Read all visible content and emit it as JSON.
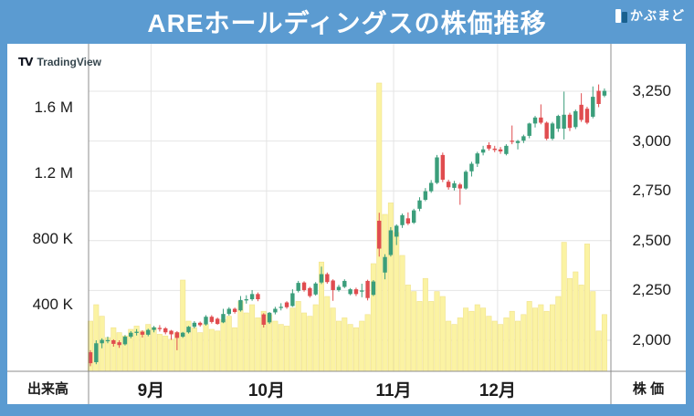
{
  "header": {
    "title": "AREホールディングスの株価推移",
    "brand": "かぶまど"
  },
  "watermark": {
    "label": "TradingView"
  },
  "chart_data": {
    "type": "candlestick",
    "title": "AREホールディングスの株価推移",
    "grid": true,
    "x_axis": {
      "tick_labels": [
        "9月",
        "10月",
        "11月",
        "12月"
      ],
      "month_start_indices": [
        11,
        31,
        53,
        71
      ]
    },
    "price_axis": {
      "label": "株 価",
      "side": "right",
      "tick_labels": [
        "3,250",
        "3,000",
        "2,750",
        "2,500",
        "2,250",
        "2,000"
      ],
      "ticks": [
        3250,
        3000,
        2750,
        2500,
        2250,
        2000
      ],
      "range_shown": [
        1850,
        3320
      ]
    },
    "volume_axis": {
      "label": "出来高",
      "side": "left",
      "tick_labels": [
        "1.6 M",
        "1.2 M",
        "800 K",
        "400 K"
      ],
      "ticks": [
        1600000,
        1200000,
        800000,
        400000
      ]
    },
    "colors": {
      "up": "#3B9E7B",
      "down": "#E04C4F",
      "volume_fill": "#FBF3A3",
      "volume_edge": "#F0E28E",
      "frame_blue": "#5B9BD1",
      "grid": "#E4E4E4",
      "axis_line": "#8C8C8C"
    },
    "candles": {
      "format": [
        "open",
        "high",
        "low",
        "close",
        "volume"
      ],
      "volume_unit": 1000,
      "data": [
        [
          1940,
          1950,
          1870,
          1885,
          300
        ],
        [
          1890,
          2000,
          1880,
          1985,
          400
        ],
        [
          1985,
          2010,
          1960,
          2002,
          330
        ],
        [
          2000,
          2018,
          1985,
          2001,
          200
        ],
        [
          2000,
          2005,
          1968,
          1982,
          260
        ],
        [
          1990,
          2000,
          1962,
          1976,
          230
        ],
        [
          1980,
          2026,
          1974,
          2018,
          210
        ],
        [
          2018,
          2046,
          2010,
          2038,
          250
        ],
        [
          2040,
          2056,
          2024,
          2043,
          270
        ],
        [
          2043,
          2050,
          2014,
          2028,
          240
        ],
        [
          2028,
          2058,
          2020,
          2052,
          280
        ],
        [
          2052,
          2072,
          2040,
          2065,
          260
        ],
        [
          2062,
          2076,
          2044,
          2058,
          220
        ],
        [
          2060,
          2066,
          2030,
          2040,
          210
        ],
        [
          2048,
          2052,
          2002,
          2030,
          190
        ],
        [
          2040,
          2046,
          1950,
          2012,
          230
        ],
        [
          2018,
          2042,
          2012,
          2038,
          550
        ],
        [
          2040,
          2072,
          2034,
          2068,
          300
        ],
        [
          2068,
          2096,
          2060,
          2088,
          260
        ],
        [
          2088,
          2094,
          2068,
          2076,
          230
        ],
        [
          2080,
          2126,
          2074,
          2118,
          280
        ],
        [
          2118,
          2126,
          2084,
          2092,
          250
        ],
        [
          2108,
          2114,
          2078,
          2082,
          240
        ],
        [
          2090,
          2158,
          2086,
          2132,
          310
        ],
        [
          2132,
          2166,
          2124,
          2158,
          330
        ],
        [
          2158,
          2164,
          2134,
          2142,
          260
        ],
        [
          2150,
          2222,
          2144,
          2202,
          420
        ],
        [
          2202,
          2226,
          2184,
          2206,
          350
        ],
        [
          2206,
          2252,
          2198,
          2232,
          400
        ],
        [
          2232,
          2240,
          2196,
          2206,
          320
        ],
        [
          2130,
          2136,
          2064,
          2078,
          360
        ],
        [
          2090,
          2142,
          2082,
          2138,
          340
        ],
        [
          2140,
          2168,
          2130,
          2158,
          300
        ],
        [
          2165,
          2186,
          2150,
          2168,
          280
        ],
        [
          2190,
          2196,
          2158,
          2166,
          270
        ],
        [
          2172,
          2256,
          2168,
          2236,
          380
        ],
        [
          2248,
          2298,
          2240,
          2288,
          420
        ],
        [
          2290,
          2296,
          2244,
          2252,
          350
        ],
        [
          2262,
          2268,
          2214,
          2222,
          330
        ],
        [
          2230,
          2292,
          2224,
          2285,
          400
        ],
        [
          2290,
          2370,
          2282,
          2332,
          660
        ],
        [
          2332,
          2340,
          2284,
          2292,
          450
        ],
        [
          2300,
          2306,
          2198,
          2252,
          380
        ],
        [
          2252,
          2278,
          2244,
          2268,
          300
        ],
        [
          2268,
          2306,
          2262,
          2298,
          320
        ],
        [
          2232,
          2262,
          2226,
          2256,
          280
        ],
        [
          2256,
          2264,
          2222,
          2232,
          260
        ],
        [
          2245,
          2284,
          2216,
          2250,
          300
        ],
        [
          2298,
          2304,
          2200,
          2212,
          340
        ],
        [
          2228,
          2302,
          2222,
          2295,
          650
        ],
        [
          2600,
          2640,
          2420,
          2460,
          1750
        ],
        [
          2340,
          2432,
          2306,
          2418,
          950
        ],
        [
          2428,
          2568,
          2420,
          2552,
          1020
        ],
        [
          2520,
          2582,
          2478,
          2575,
          840
        ],
        [
          2578,
          2636,
          2564,
          2628,
          700
        ],
        [
          2612,
          2642,
          2578,
          2586,
          520
        ],
        [
          2590,
          2660,
          2584,
          2652,
          480
        ],
        [
          2660,
          2718,
          2648,
          2702,
          420
        ],
        [
          2705,
          2764,
          2698,
          2748,
          560
        ],
        [
          2748,
          2804,
          2740,
          2790,
          420
        ],
        [
          2790,
          2930,
          2784,
          2918,
          480
        ],
        [
          2930,
          2942,
          2794,
          2806,
          450
        ],
        [
          2796,
          2806,
          2756,
          2768,
          300
        ],
        [
          2765,
          2800,
          2752,
          2788,
          280
        ],
        [
          2782,
          2790,
          2680,
          2762,
          320
        ],
        [
          2762,
          2854,
          2756,
          2846,
          380
        ],
        [
          2848,
          2896,
          2822,
          2886,
          360
        ],
        [
          2886,
          2946,
          2870,
          2938,
          400
        ],
        [
          2942,
          2976,
          2928,
          2958,
          380
        ],
        [
          2980,
          2994,
          2952,
          2962,
          330
        ],
        [
          2962,
          2976,
          2944,
          2955,
          300
        ],
        [
          2958,
          2970,
          2936,
          2948,
          280
        ],
        [
          2935,
          2984,
          2928,
          2976,
          320
        ],
        [
          3002,
          3078,
          2984,
          2998,
          360
        ],
        [
          2990,
          3006,
          2958,
          3000,
          300
        ],
        [
          3002,
          3032,
          2990,
          3024,
          340
        ],
        [
          3026,
          3092,
          3014,
          3088,
          420
        ],
        [
          3088,
          3126,
          3068,
          3118,
          380
        ],
        [
          3118,
          3184,
          3084,
          3092,
          400
        ],
        [
          3092,
          3098,
          3004,
          3012,
          360
        ],
        [
          3012,
          3096,
          3004,
          3088,
          400
        ],
        [
          3062,
          3132,
          3046,
          3126,
          450
        ],
        [
          3062,
          3248,
          3008,
          3132,
          780
        ],
        [
          3132,
          3142,
          3050,
          3066,
          560
        ],
        [
          3070,
          3158,
          3060,
          3150,
          600
        ],
        [
          3182,
          3240,
          3096,
          3106,
          520
        ],
        [
          3162,
          3172,
          3084,
          3092,
          770
        ],
        [
          3122,
          3274,
          3114,
          3222,
          480
        ],
        [
          3252,
          3284,
          3170,
          3186,
          240
        ],
        [
          3228,
          3264,
          3220,
          3252,
          340
        ]
      ]
    }
  }
}
